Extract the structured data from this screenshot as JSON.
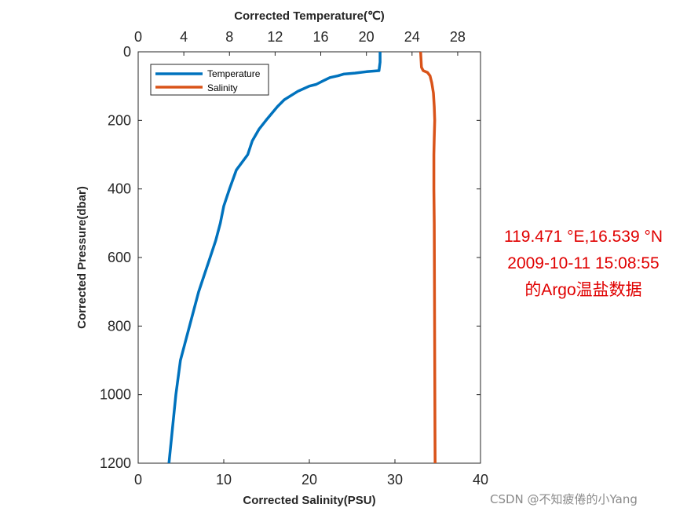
{
  "chart_data": {
    "type": "line",
    "top_axis": {
      "label": "Corrected Temperature(℃)",
      "range": [
        0,
        30
      ],
      "ticks": [
        "0",
        "4",
        "8",
        "12",
        "16",
        "20",
        "24",
        "28"
      ]
    },
    "bottom_axis": {
      "label": "Corrected Salinity(PSU)",
      "range": [
        0,
        40
      ],
      "ticks": [
        "0",
        "10",
        "20",
        "30",
        "40"
      ]
    },
    "y_axis": {
      "label": "Corrected Pressure(dbar)",
      "range": [
        0,
        1200
      ],
      "reversed": true,
      "ticks": [
        "0",
        "200",
        "400",
        "600",
        "800",
        "1000",
        "1200"
      ]
    },
    "grid": false,
    "legend_position": "top-left",
    "series": [
      {
        "name": "Temperature",
        "axis": "top",
        "color": "#0072BD",
        "x": [
          21.2,
          21.2,
          21.1,
          20.0,
          19.0,
          18.0,
          17.5,
          16.8,
          16.2,
          15.6,
          15.0,
          14.0,
          12.8,
          12.2,
          11.7,
          11.2,
          10.6,
          10.0,
          9.6,
          8.6,
          8.0,
          7.5,
          7.2,
          6.8,
          6.3,
          5.8,
          5.3,
          4.9,
          4.5,
          4.1,
          3.7,
          3.3,
          3.0,
          2.7
        ],
        "y": [
          0,
          30,
          55,
          58,
          62,
          65,
          70,
          75,
          85,
          95,
          100,
          115,
          140,
          160,
          180,
          200,
          225,
          260,
          300,
          345,
          400,
          450,
          500,
          550,
          600,
          650,
          700,
          750,
          800,
          850,
          900,
          1000,
          1100,
          1200
        ]
      },
      {
        "name": "Salinity",
        "axis": "bottom",
        "color": "#D95319",
        "x": [
          33.0,
          33.1,
          33.3,
          33.8,
          34.1,
          34.3,
          34.5,
          34.6,
          34.65,
          34.6,
          34.55,
          34.55,
          34.6,
          34.62,
          34.65,
          34.68,
          34.7
        ],
        "y": [
          0,
          45,
          55,
          60,
          70,
          90,
          120,
          160,
          200,
          250,
          300,
          400,
          500,
          700,
          900,
          1100,
          1200
        ]
      }
    ]
  },
  "annotation": {
    "lines": [
      "119.471 °E,16.539  °N",
      "2009-10-11 15:08:55",
      "的Argo温盐数据"
    ],
    "color": "#e00000"
  },
  "watermark": "CSDN @不知疲倦的小Yang"
}
